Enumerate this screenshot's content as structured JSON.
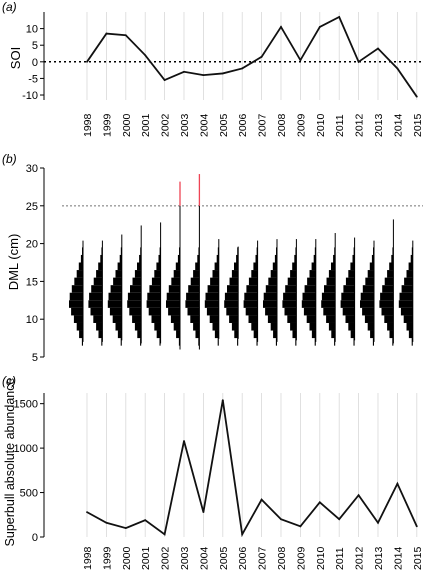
{
  "chart_data": [
    {
      "panel": "(a)",
      "type": "line",
      "ylabel": "SOI",
      "yticks": [
        10,
        5,
        0,
        -5,
        -10
      ],
      "ylim": [
        -11.5,
        15
      ],
      "categories": [
        "1998",
        "1999",
        "2000",
        "2001",
        "2002",
        "2003",
        "2004",
        "2005",
        "2006",
        "2007",
        "2008",
        "2009",
        "2010",
        "2011",
        "2012",
        "2013",
        "2014",
        "2015"
      ],
      "values": [
        0,
        8.5,
        8,
        2,
        -5.5,
        -3,
        -4,
        -3.5,
        -2,
        1.5,
        10.5,
        0.5,
        10.5,
        13.5,
        0,
        4,
        -2,
        -10.5
      ],
      "reference_line": 0,
      "grid": "vertical"
    },
    {
      "panel": "(b)",
      "type": "histogram-series",
      "ylabel": "DML (cm)",
      "yticks": [
        30,
        25,
        20,
        15,
        10,
        5
      ],
      "ylim": [
        5,
        30
      ],
      "threshold": 25,
      "categories": [
        "1998",
        "1999",
        "2000",
        "2001",
        "2002",
        "2003",
        "2004",
        "2005",
        "2006",
        "2007",
        "2008",
        "2009",
        "2010",
        "2011",
        "2012",
        "2013",
        "2014",
        "2015"
      ],
      "max_dml": [
        20.4,
        20.4,
        21.2,
        22.4,
        22.8,
        28.2,
        29.2,
        20.6,
        19.6,
        20.4,
        20.6,
        20.6,
        20.6,
        21.4,
        20.8,
        20.4,
        23.2,
        20.4
      ],
      "min_dml": [
        7,
        7,
        7.2,
        6.8,
        6.8,
        6,
        6,
        7.4,
        7.4,
        7,
        7,
        7.2,
        7,
        7,
        7.2,
        7,
        6.8,
        7
      ],
      "highlight_color": "#ee4455"
    },
    {
      "panel": "(c)",
      "type": "line",
      "ylabel": "Superbull absolute abundance",
      "yticks": [
        1500,
        1000,
        500,
        0
      ],
      "ylim": [
        0,
        1620
      ],
      "categories": [
        "1998",
        "1999",
        "2000",
        "2001",
        "2002",
        "2003",
        "2004",
        "2005",
        "2006",
        "2007",
        "2008",
        "2009",
        "2010",
        "2011",
        "2012",
        "2013",
        "2014",
        "2015"
      ],
      "values": [
        280,
        160,
        100,
        190,
        30,
        1080,
        280,
        1540,
        30,
        420,
        200,
        120,
        390,
        200,
        470,
        160,
        600,
        120
      ],
      "grid": "vertical"
    }
  ]
}
